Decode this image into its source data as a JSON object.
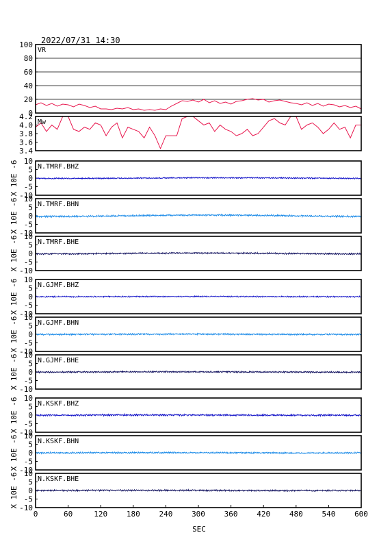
{
  "title": "2022/07/31  14:30",
  "xlabel": "SEC",
  "x_ticks": [
    "0",
    "60",
    "120",
    "180",
    "240",
    "300",
    "360",
    "420",
    "480",
    "540",
    "600"
  ],
  "ylabel": "X 10E -6",
  "colors": {
    "vr": "#e8174e",
    "mw": "#e8174e",
    "bhz": "#1515c8",
    "bhn": "#1e8ce8",
    "bhe": "#141460"
  },
  "chart_data": [
    {
      "type": "line",
      "name": "VR",
      "ylim": [
        0,
        100
      ],
      "y_ticks": [
        "100",
        "80",
        "60",
        "40",
        "20",
        "0"
      ],
      "grid": true,
      "x": [
        0,
        10,
        20,
        30,
        40,
        50,
        60,
        70,
        80,
        90,
        100,
        110,
        120,
        130,
        140,
        150,
        160,
        170,
        180,
        190,
        200,
        210,
        220,
        230,
        240,
        250,
        260,
        270,
        280,
        290,
        300,
        310,
        320,
        330,
        340,
        350,
        360,
        370,
        380,
        390,
        400,
        410,
        420,
        430,
        440,
        450,
        460,
        470,
        480,
        490,
        500,
        510,
        520,
        530,
        540,
        550,
        560,
        570,
        580,
        590,
        600
      ],
      "values": [
        12,
        15,
        11,
        14,
        10,
        13,
        12,
        9,
        13,
        11,
        8,
        10,
        6,
        6,
        5,
        7,
        6,
        8,
        5,
        6,
        4,
        5,
        4,
        6,
        5,
        10,
        14,
        18,
        17,
        19,
        16,
        20,
        15,
        18,
        14,
        16,
        13,
        17,
        18,
        20,
        21,
        19,
        20,
        16,
        18,
        19,
        17,
        15,
        14,
        12,
        15,
        11,
        14,
        10,
        13,
        12,
        9,
        11,
        8,
        10,
        6
      ]
    },
    {
      "type": "line",
      "name": "Mw",
      "ylim": [
        3.4,
        4.2
      ],
      "y_ticks": [
        "4.2",
        "4.0",
        "3.8",
        "3.6",
        "3.4"
      ],
      "x": [
        0,
        10,
        20,
        30,
        40,
        50,
        60,
        70,
        80,
        90,
        100,
        110,
        120,
        130,
        140,
        150,
        160,
        170,
        180,
        190,
        200,
        210,
        220,
        230,
        240,
        250,
        260,
        270,
        280,
        290,
        300,
        310,
        320,
        330,
        340,
        350,
        360,
        370,
        380,
        390,
        400,
        410,
        420,
        430,
        440,
        450,
        460,
        470,
        480,
        490,
        500,
        510,
        520,
        530,
        540,
        550,
        560,
        570,
        580,
        590,
        600
      ],
      "values": [
        3.95,
        4.05,
        3.85,
        4.0,
        3.9,
        4.2,
        4.2,
        3.9,
        3.85,
        3.95,
        3.9,
        4.05,
        4.0,
        3.75,
        3.95,
        4.05,
        3.7,
        3.95,
        3.9,
        3.85,
        3.7,
        3.95,
        3.75,
        3.45,
        3.75,
        3.75,
        3.75,
        4.15,
        4.2,
        4.2,
        4.1,
        4.0,
        4.05,
        3.85,
        4.0,
        3.9,
        3.85,
        3.75,
        3.8,
        3.9,
        3.75,
        3.8,
        3.95,
        4.1,
        4.15,
        4.05,
        4.0,
        4.2,
        4.2,
        3.9,
        4.0,
        4.05,
        3.95,
        3.8,
        3.9,
        4.05,
        3.9,
        3.95,
        3.7,
        4.0,
        4.0
      ]
    },
    {
      "type": "line",
      "name": "N.TMRF.BHZ",
      "ylim": [
        -10,
        10
      ],
      "y_ticks": [
        "10",
        "5",
        "0",
        "-5",
        "-10"
      ],
      "color_key": "bhz",
      "amp": 0.25,
      "drift": 0.35
    },
    {
      "type": "line",
      "name": "N.TMRF.BHN",
      "ylim": [
        -10,
        10
      ],
      "y_ticks": [
        "10",
        "5",
        "0",
        "-5",
        "-10"
      ],
      "color_key": "bhn",
      "amp": 0.35,
      "drift": 0.8
    },
    {
      "type": "line",
      "name": "N.TMRF.BHE",
      "ylim": [
        -10,
        10
      ],
      "y_ticks": [
        "10",
        "5",
        "0",
        "-5",
        "-10"
      ],
      "color_key": "bhe",
      "amp": 0.3,
      "drift": 0.5
    },
    {
      "type": "line",
      "name": "N.GJMF.BHZ",
      "ylim": [
        -10,
        10
      ],
      "y_ticks": [
        "10",
        "5",
        "0",
        "-5",
        "-10"
      ],
      "color_key": "bhz",
      "amp": 0.25,
      "drift": 0.1
    },
    {
      "type": "line",
      "name": "N.GJMF.BHN",
      "ylim": [
        -10,
        10
      ],
      "y_ticks": [
        "10",
        "5",
        "0",
        "-5",
        "-10"
      ],
      "color_key": "bhn",
      "amp": 0.3,
      "drift": 0.2
    },
    {
      "type": "line",
      "name": "N.GJMF.BHE",
      "ylim": [
        -10,
        10
      ],
      "y_ticks": [
        "10",
        "5",
        "0",
        "-5",
        "-10"
      ],
      "color_key": "bhe",
      "amp": 0.3,
      "drift": 0.2
    },
    {
      "type": "line",
      "name": "N.KSKF.BHZ",
      "ylim": [
        -10,
        10
      ],
      "y_ticks": [
        "10",
        "5",
        "0",
        "-5",
        "-10"
      ],
      "color_key": "bhz",
      "amp": 0.35,
      "drift": 0.15
    },
    {
      "type": "line",
      "name": "N.KSKF.BHN",
      "ylim": [
        -10,
        10
      ],
      "y_ticks": [
        "10",
        "5",
        "0",
        "-5",
        "-10"
      ],
      "color_key": "bhn",
      "amp": 0.3,
      "drift": 0.15
    },
    {
      "type": "line",
      "name": "N.KSKF.BHE",
      "ylim": [
        -10,
        10
      ],
      "y_ticks": [
        "10",
        "5",
        "0",
        "-5",
        "-10"
      ],
      "color_key": "bhe",
      "amp": 0.3,
      "drift": 0.15
    }
  ]
}
